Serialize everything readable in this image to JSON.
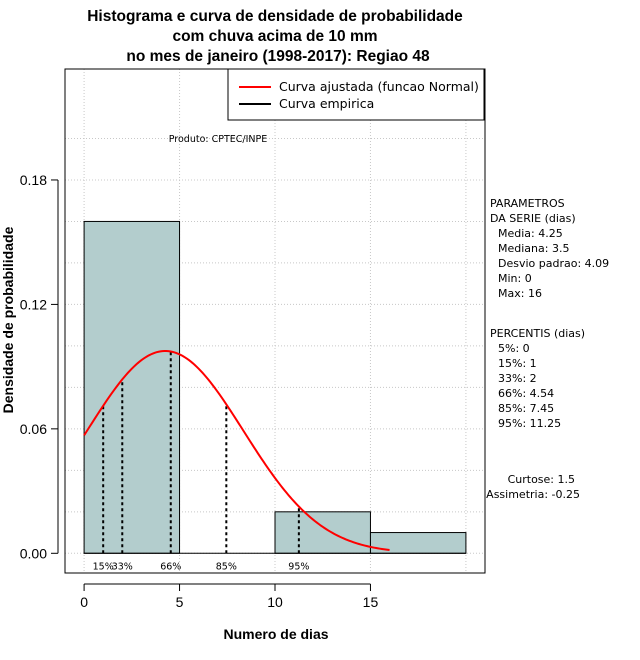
{
  "chart_data": {
    "type": "bar",
    "title": [
      "Histograma e curva de densidade de probabilidade",
      "com chuva acima de 10 mm",
      "no mes de janeiro (1998-2017): Regiao 48"
    ],
    "xlabel": "Numero de dias",
    "ylabel": "Densidade de probabilidade",
    "xlim": [
      -1,
      21
    ],
    "ylim": [
      -0.0095,
      0.2335
    ],
    "x_ticks": [
      0,
      5,
      10,
      15
    ],
    "x_tick_labels": [
      "0",
      "5",
      "10",
      "15"
    ],
    "y_ticks": [
      0.0,
      0.06,
      0.12,
      0.18
    ],
    "y_tick_labels": [
      "0.00",
      "0.06",
      "0.12",
      "0.18"
    ],
    "grid": true,
    "bars": [
      {
        "x0": 0,
        "x1": 5,
        "value": 0.16
      },
      {
        "x0": 5,
        "x1": 10,
        "value": 0.0
      },
      {
        "x0": 10,
        "x1": 15,
        "value": 0.02
      },
      {
        "x0": 15,
        "x1": 20,
        "value": 0.01
      }
    ],
    "bar_color": "#b3cdcd",
    "fitted_curve": {
      "name": "Curva ajustada (funcao Normal)",
      "color": "#ff0000",
      "mean": 4.25,
      "sd": 4.09,
      "x_range": [
        0,
        16
      ]
    },
    "empirical_curve": {
      "name": "Curva empirica",
      "color": "#000000"
    },
    "legend_position": "top-right",
    "percentile_marks": [
      {
        "label": "15%",
        "x": 1
      },
      {
        "label": "33%",
        "x": 2
      },
      {
        "label": "66%",
        "x": 4.54
      },
      {
        "label": "85%",
        "x": 7.45
      },
      {
        "label": "95%",
        "x": 11.25
      }
    ],
    "annotations": {
      "product": "Produto: CPTEC/INPE",
      "parameters": [
        "PARAMETROS",
        "DA SERIE (dias)",
        "Media: 4.25",
        "Mediana: 3.5",
        "Desvio padrao: 4.09",
        "Min: 0",
        "Max: 16"
      ],
      "percentiles": [
        "PERCENTIS (dias)",
        "5%: 0",
        "15%: 1",
        "33%: 2",
        "66%: 4.54",
        "85%: 7.45",
        "95%: 11.25"
      ],
      "shape": [
        "Curtose: 1.5",
        "Assimetria: -0.25"
      ]
    }
  }
}
